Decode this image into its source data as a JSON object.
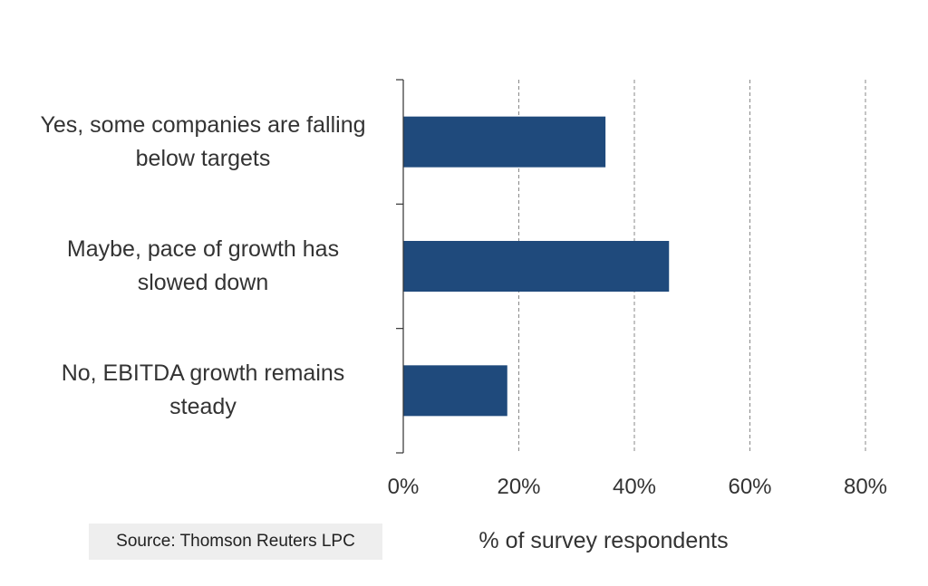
{
  "chart_data": {
    "type": "bar",
    "orientation": "horizontal",
    "categories": [
      "Yes, some companies are falling below targets",
      "Maybe, pace of growth has slowed down",
      "No, EBITDA growth remains steady"
    ],
    "category_lines": [
      [
        "Yes, some companies are falling",
        "below targets"
      ],
      [
        "Maybe, pace of growth has",
        "slowed down"
      ],
      [
        "No, EBITDA growth remains",
        "steady"
      ]
    ],
    "values": [
      35,
      46,
      18
    ],
    "xlabel": "% of survey respondents",
    "xlim": [
      0,
      80
    ],
    "xticks": [
      0,
      20,
      40,
      60,
      80
    ],
    "xtick_labels": [
      "0%",
      "20%",
      "40%",
      "60%",
      "80%"
    ],
    "grid": "vertical dashed",
    "bar_color": "#1f4a7c"
  },
  "source": "Source: Thomson Reuters LPC"
}
